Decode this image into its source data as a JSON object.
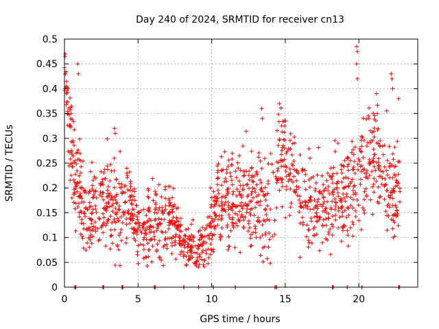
{
  "chart_data": {
    "type": "scatter",
    "title": "Day 240 of 2024, SRMTID for receiver cn13",
    "xlabel": "GPS time / hours",
    "ylabel": "SRMTID / TECUs",
    "xlim": [
      0,
      24
    ],
    "ylim": [
      0,
      0.5
    ],
    "xticks": [
      0,
      5,
      10,
      15,
      20
    ],
    "xtick_labels": [
      "0",
      "5",
      "10",
      "15",
      "20"
    ],
    "yticks": [
      0,
      0.05,
      0.1,
      0.15,
      0.2,
      0.25,
      0.3,
      0.35,
      0.4,
      0.45,
      0.5
    ],
    "ytick_labels": [
      "0",
      "0.05",
      "0.1",
      "0.15",
      "0.2",
      "0.25",
      "0.3",
      "0.35",
      "0.4",
      "0.45",
      "0.5"
    ],
    "grid": true,
    "marker": "+",
    "marker_color": "#ff0000",
    "series": [
      {
        "name": "SRMTID",
        "profile_hours": [
          0.0,
          0.2,
          0.5,
          1.0,
          1.5,
          2.0,
          3.0,
          3.5,
          4.0,
          4.5,
          5.0,
          5.5,
          6.0,
          7.0,
          7.5,
          8.0,
          8.5,
          9.0,
          9.5,
          10.0,
          10.5,
          11.0,
          12.0,
          13.0,
          13.5,
          14.0,
          14.5,
          15.0,
          15.5,
          16.0,
          16.5,
          17.0,
          17.5,
          18.0,
          18.5,
          19.0,
          19.5,
          20.0,
          20.5,
          21.0,
          21.5,
          22.0,
          22.5,
          22.8
        ],
        "profile_median": [
          0.44,
          0.37,
          0.27,
          0.18,
          0.15,
          0.15,
          0.17,
          0.14,
          0.15,
          0.17,
          0.12,
          0.11,
          0.13,
          0.15,
          0.12,
          0.09,
          0.085,
          0.075,
          0.085,
          0.13,
          0.17,
          0.19,
          0.17,
          0.19,
          0.18,
          0.15,
          0.24,
          0.28,
          0.22,
          0.19,
          0.17,
          0.16,
          0.17,
          0.16,
          0.19,
          0.18,
          0.2,
          0.23,
          0.25,
          0.27,
          0.25,
          0.2,
          0.2,
          0.19
        ],
        "profile_spread": [
          0.02,
          0.03,
          0.05,
          0.05,
          0.04,
          0.04,
          0.05,
          0.05,
          0.05,
          0.04,
          0.03,
          0.03,
          0.04,
          0.04,
          0.03,
          0.02,
          0.02,
          0.02,
          0.025,
          0.04,
          0.05,
          0.05,
          0.05,
          0.05,
          0.05,
          0.05,
          0.05,
          0.05,
          0.05,
          0.04,
          0.04,
          0.04,
          0.04,
          0.04,
          0.05,
          0.05,
          0.05,
          0.05,
          0.05,
          0.05,
          0.05,
          0.05,
          0.05,
          0.05
        ],
        "outliers": [
          {
            "x": 0.05,
            "y": 0.47
          },
          {
            "x": 0.9,
            "y": 0.45
          },
          {
            "x": 0.95,
            "y": 0.43
          },
          {
            "x": 0.25,
            "y": 0.4
          },
          {
            "x": 3.4,
            "y": 0.32
          },
          {
            "x": 3.45,
            "y": 0.31
          },
          {
            "x": 13.4,
            "y": 0.36
          },
          {
            "x": 13.45,
            "y": 0.34
          },
          {
            "x": 14.6,
            "y": 0.37
          },
          {
            "x": 19.85,
            "y": 0.485
          },
          {
            "x": 19.9,
            "y": 0.475
          },
          {
            "x": 19.85,
            "y": 0.45
          },
          {
            "x": 19.9,
            "y": 0.42
          },
          {
            "x": 21.2,
            "y": 0.39
          },
          {
            "x": 22.2,
            "y": 0.43
          },
          {
            "x": 22.25,
            "y": 0.42
          },
          {
            "x": 22.3,
            "y": 0.4
          },
          {
            "x": 22.7,
            "y": 0.38
          },
          {
            "x": 16.0,
            "y": 0.06
          },
          {
            "x": 8.3,
            "y": 0.045
          }
        ],
        "baseline_x": [
          0.7,
          0.75,
          2.6,
          2.65,
          3.9,
          3.95,
          6.1,
          6.15,
          8.1,
          9.1,
          10.1,
          11.6,
          14.3,
          14.4,
          18.2,
          18.25,
          19.2,
          20.2,
          22.7,
          22.75
        ]
      }
    ]
  }
}
